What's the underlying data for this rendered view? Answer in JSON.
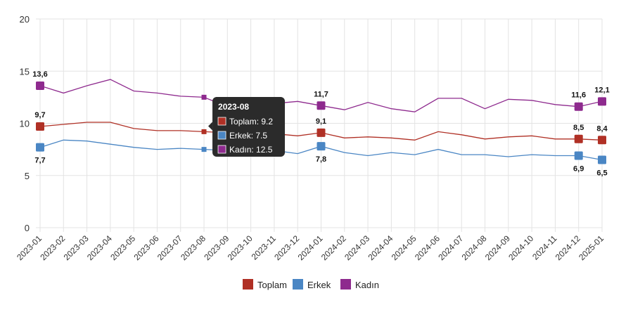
{
  "chart_data": {
    "type": "line",
    "title": "",
    "xlabel": "",
    "ylabel": "",
    "ylim": [
      0,
      20
    ],
    "yticks": [
      0,
      5,
      10,
      15,
      20
    ],
    "grid": true,
    "legend_position": "bottom-center",
    "categories": [
      "2023-01",
      "2023-02",
      "2023-03",
      "2023-04",
      "2023-05",
      "2023-06",
      "2023-07",
      "2023-08",
      "2023-09",
      "2023-10",
      "2023-11",
      "2023-12",
      "2024-01",
      "2024-02",
      "2024-03",
      "2024-04",
      "2024-05",
      "2024-06",
      "2024-07",
      "2024-08",
      "2024-09",
      "2024-10",
      "2024-11",
      "2024-12",
      "2025-01"
    ],
    "series": [
      {
        "name": "Toplam",
        "color": "#b03025",
        "values": [
          9.7,
          9.9,
          10.1,
          10.1,
          9.5,
          9.3,
          9.3,
          9.2,
          9.1,
          9.1,
          9.0,
          8.8,
          9.1,
          8.6,
          8.7,
          8.6,
          8.4,
          9.2,
          8.9,
          8.5,
          8.7,
          8.8,
          8.5,
          8.5,
          8.4
        ],
        "labels": [
          {
            "index": 0,
            "text": "9,7"
          },
          {
            "index": 12,
            "text": "9,1"
          },
          {
            "index": 23,
            "text": "8,5"
          },
          {
            "index": 24,
            "text": "8,4"
          }
        ]
      },
      {
        "name": "Erkek",
        "color": "#4a86c4",
        "values": [
          7.7,
          8.4,
          8.3,
          8.0,
          7.7,
          7.5,
          7.6,
          7.5,
          7.4,
          7.4,
          7.4,
          7.1,
          7.8,
          7.2,
          6.9,
          7.2,
          7.0,
          7.5,
          7.0,
          7.0,
          6.8,
          7.0,
          6.9,
          6.9,
          6.5
        ],
        "labels": [
          {
            "index": 0,
            "text": "7,7"
          },
          {
            "index": 12,
            "text": "7,8"
          },
          {
            "index": 23,
            "text": "6,9"
          },
          {
            "index": 24,
            "text": "6,5"
          }
        ]
      },
      {
        "name": "Kadın",
        "color": "#8e2a8e",
        "values": [
          13.6,
          12.9,
          13.6,
          14.2,
          13.1,
          12.9,
          12.6,
          12.5,
          11.6,
          11.7,
          11.9,
          12.1,
          11.7,
          11.3,
          12.0,
          11.4,
          11.1,
          12.4,
          12.4,
          11.4,
          12.3,
          12.2,
          11.8,
          11.6,
          12.1
        ],
        "labels": [
          {
            "index": 0,
            "text": "13,6"
          },
          {
            "index": 12,
            "text": "11,7"
          },
          {
            "index": 23,
            "text": "11,6"
          },
          {
            "index": 24,
            "text": "12,1"
          }
        ]
      }
    ],
    "tooltip": {
      "index": 7,
      "title": "2023-08",
      "lines": [
        "Toplam: 9.2",
        "Erkek: 7.5",
        "Kadın: 12.5"
      ]
    }
  }
}
